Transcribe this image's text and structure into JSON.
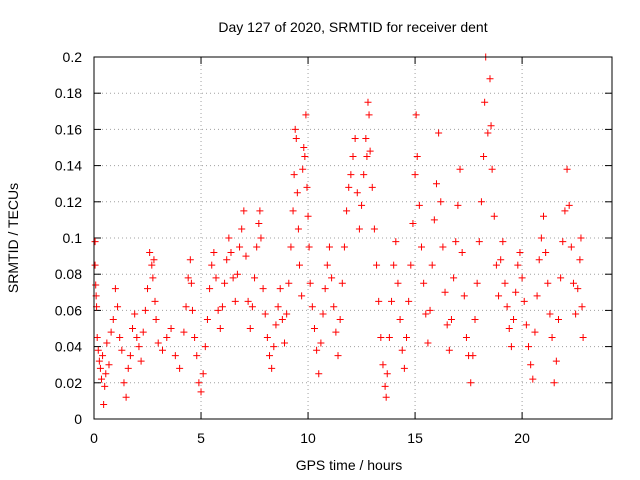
{
  "chart_data": {
    "type": "scatter",
    "title": "Day 127 of 2020, SRMTID for receiver dent",
    "xlabel": "GPS time / hours",
    "ylabel": "SRMTID / TECUs",
    "xlim": [
      0,
      24.2
    ],
    "ylim": [
      0,
      0.2
    ],
    "x_ticks": [
      0,
      5,
      10,
      15,
      20
    ],
    "x_tick_labels": [
      "0",
      "5",
      "10",
      "15",
      "20"
    ],
    "y_ticks": [
      0,
      0.02,
      0.04,
      0.06,
      0.08,
      0.1,
      0.12,
      0.14,
      0.16,
      0.18,
      0.2
    ],
    "y_tick_labels": [
      "0",
      "0.02",
      "0.04",
      "0.06",
      "0.08",
      "0.1",
      "0.12",
      "0.14",
      "0.16",
      "0.18",
      "0.2"
    ],
    "grid": true,
    "marker": "+",
    "marker_color": "#ff0000",
    "series": [
      {
        "name": "SRMTID",
        "points": [
          [
            0.05,
            0.098
          ],
          [
            0.05,
            0.085
          ],
          [
            0.08,
            0.074
          ],
          [
            0.1,
            0.068
          ],
          [
            0.12,
            0.062
          ],
          [
            0.15,
            0.045
          ],
          [
            0.2,
            0.038
          ],
          [
            0.25,
            0.032
          ],
          [
            0.3,
            0.028
          ],
          [
            0.35,
            0.022
          ],
          [
            0.4,
            0.035
          ],
          [
            0.45,
            0.008
          ],
          [
            0.5,
            0.018
          ],
          [
            0.55,
            0.025
          ],
          [
            0.6,
            0.042
          ],
          [
            0.7,
            0.03
          ],
          [
            0.8,
            0.048
          ],
          [
            0.9,
            0.055
          ],
          [
            1.0,
            0.072
          ],
          [
            1.1,
            0.062
          ],
          [
            1.2,
            0.045
          ],
          [
            1.3,
            0.038
          ],
          [
            1.4,
            0.02
          ],
          [
            1.5,
            0.012
          ],
          [
            1.6,
            0.028
          ],
          [
            1.7,
            0.035
          ],
          [
            1.8,
            0.05
          ],
          [
            1.9,
            0.058
          ],
          [
            2.0,
            0.045
          ],
          [
            2.1,
            0.04
          ],
          [
            2.2,
            0.032
          ],
          [
            2.3,
            0.048
          ],
          [
            2.4,
            0.06
          ],
          [
            2.5,
            0.072
          ],
          [
            2.6,
            0.092
          ],
          [
            2.7,
            0.085
          ],
          [
            2.75,
            0.078
          ],
          [
            2.8,
            0.088
          ],
          [
            2.85,
            0.065
          ],
          [
            2.9,
            0.055
          ],
          [
            3.0,
            0.042
          ],
          [
            3.2,
            0.038
          ],
          [
            3.4,
            0.045
          ],
          [
            3.6,
            0.05
          ],
          [
            3.8,
            0.035
          ],
          [
            4.0,
            0.028
          ],
          [
            4.2,
            0.048
          ],
          [
            4.3,
            0.062
          ],
          [
            4.4,
            0.078
          ],
          [
            4.5,
            0.088
          ],
          [
            4.55,
            0.075
          ],
          [
            4.6,
            0.06
          ],
          [
            4.7,
            0.045
          ],
          [
            4.8,
            0.035
          ],
          [
            4.9,
            0.02
          ],
          [
            5.0,
            0.015
          ],
          [
            5.1,
            0.025
          ],
          [
            5.2,
            0.04
          ],
          [
            5.3,
            0.055
          ],
          [
            5.4,
            0.072
          ],
          [
            5.5,
            0.085
          ],
          [
            5.6,
            0.092
          ],
          [
            5.7,
            0.078
          ],
          [
            5.8,
            0.06
          ],
          [
            5.9,
            0.05
          ],
          [
            6.0,
            0.062
          ],
          [
            6.1,
            0.075
          ],
          [
            6.2,
            0.088
          ],
          [
            6.3,
            0.1
          ],
          [
            6.4,
            0.092
          ],
          [
            6.5,
            0.078
          ],
          [
            6.6,
            0.065
          ],
          [
            6.7,
            0.08
          ],
          [
            6.8,
            0.095
          ],
          [
            6.9,
            0.105
          ],
          [
            7.0,
            0.115
          ],
          [
            7.1,
            0.09
          ],
          [
            7.2,
            0.065
          ],
          [
            7.3,
            0.05
          ],
          [
            7.4,
            0.062
          ],
          [
            7.5,
            0.078
          ],
          [
            7.6,
            0.095
          ],
          [
            7.7,
            0.108
          ],
          [
            7.75,
            0.115
          ],
          [
            7.8,
            0.1
          ],
          [
            7.9,
            0.072
          ],
          [
            8.0,
            0.058
          ],
          [
            8.1,
            0.045
          ],
          [
            8.2,
            0.035
          ],
          [
            8.3,
            0.028
          ],
          [
            8.4,
            0.04
          ],
          [
            8.5,
            0.052
          ],
          [
            8.6,
            0.062
          ],
          [
            8.7,
            0.072
          ],
          [
            8.8,
            0.055
          ],
          [
            8.9,
            0.042
          ],
          [
            9.0,
            0.058
          ],
          [
            9.1,
            0.075
          ],
          [
            9.2,
            0.095
          ],
          [
            9.3,
            0.115
          ],
          [
            9.35,
            0.135
          ],
          [
            9.4,
            0.16
          ],
          [
            9.45,
            0.155
          ],
          [
            9.5,
            0.125
          ],
          [
            9.55,
            0.105
          ],
          [
            9.6,
            0.085
          ],
          [
            9.7,
            0.068
          ],
          [
            9.75,
            0.138
          ],
          [
            9.8,
            0.15
          ],
          [
            9.85,
            0.145
          ],
          [
            9.9,
            0.168
          ],
          [
            9.95,
            0.128
          ],
          [
            10.0,
            0.112
          ],
          [
            10.05,
            0.095
          ],
          [
            10.1,
            0.075
          ],
          [
            10.2,
            0.062
          ],
          [
            10.3,
            0.05
          ],
          [
            10.4,
            0.038
          ],
          [
            10.5,
            0.025
          ],
          [
            10.6,
            0.042
          ],
          [
            10.7,
            0.058
          ],
          [
            10.8,
            0.072
          ],
          [
            10.9,
            0.085
          ],
          [
            11.0,
            0.095
          ],
          [
            11.1,
            0.078
          ],
          [
            11.2,
            0.062
          ],
          [
            11.3,
            0.048
          ],
          [
            11.4,
            0.035
          ],
          [
            11.5,
            0.055
          ],
          [
            11.6,
            0.075
          ],
          [
            11.7,
            0.095
          ],
          [
            11.8,
            0.115
          ],
          [
            11.9,
            0.128
          ],
          [
            12.0,
            0.135
          ],
          [
            12.1,
            0.145
          ],
          [
            12.2,
            0.155
          ],
          [
            12.3,
            0.125
          ],
          [
            12.4,
            0.105
          ],
          [
            12.5,
            0.118
          ],
          [
            12.6,
            0.135
          ],
          [
            12.7,
            0.155
          ],
          [
            12.75,
            0.145
          ],
          [
            12.8,
            0.175
          ],
          [
            12.85,
            0.168
          ],
          [
            12.9,
            0.148
          ],
          [
            13.0,
            0.128
          ],
          [
            13.1,
            0.105
          ],
          [
            13.2,
            0.085
          ],
          [
            13.3,
            0.065
          ],
          [
            13.4,
            0.045
          ],
          [
            13.5,
            0.03
          ],
          [
            13.6,
            0.018
          ],
          [
            13.65,
            0.012
          ],
          [
            13.7,
            0.025
          ],
          [
            13.8,
            0.045
          ],
          [
            13.9,
            0.065
          ],
          [
            14.0,
            0.085
          ],
          [
            14.1,
            0.098
          ],
          [
            14.2,
            0.075
          ],
          [
            14.3,
            0.055
          ],
          [
            14.4,
            0.038
          ],
          [
            14.5,
            0.028
          ],
          [
            14.6,
            0.045
          ],
          [
            14.7,
            0.065
          ],
          [
            14.8,
            0.085
          ],
          [
            14.9,
            0.108
          ],
          [
            15.0,
            0.135
          ],
          [
            15.05,
            0.168
          ],
          [
            15.1,
            0.145
          ],
          [
            15.2,
            0.118
          ],
          [
            15.3,
            0.095
          ],
          [
            15.4,
            0.075
          ],
          [
            15.5,
            0.058
          ],
          [
            15.6,
            0.042
          ],
          [
            15.7,
            0.06
          ],
          [
            15.8,
            0.085
          ],
          [
            15.9,
            0.11
          ],
          [
            16.0,
            0.13
          ],
          [
            16.1,
            0.158
          ],
          [
            16.2,
            0.12
          ],
          [
            16.3,
            0.095
          ],
          [
            16.4,
            0.07
          ],
          [
            16.5,
            0.052
          ],
          [
            16.6,
            0.038
          ],
          [
            16.7,
            0.055
          ],
          [
            16.8,
            0.078
          ],
          [
            16.9,
            0.098
          ],
          [
            17.0,
            0.118
          ],
          [
            17.1,
            0.138
          ],
          [
            17.2,
            0.092
          ],
          [
            17.3,
            0.068
          ],
          [
            17.4,
            0.045
          ],
          [
            17.5,
            0.035
          ],
          [
            17.6,
            0.02
          ],
          [
            17.7,
            0.035
          ],
          [
            17.8,
            0.055
          ],
          [
            17.9,
            0.075
          ],
          [
            18.0,
            0.098
          ],
          [
            18.1,
            0.12
          ],
          [
            18.2,
            0.145
          ],
          [
            18.25,
            0.175
          ],
          [
            18.3,
            0.2
          ],
          [
            18.4,
            0.158
          ],
          [
            18.5,
            0.188
          ],
          [
            18.55,
            0.162
          ],
          [
            18.6,
            0.138
          ],
          [
            18.7,
            0.112
          ],
          [
            18.8,
            0.085
          ],
          [
            18.9,
            0.068
          ],
          [
            19.0,
            0.088
          ],
          [
            19.1,
            0.098
          ],
          [
            19.2,
            0.075
          ],
          [
            19.3,
            0.062
          ],
          [
            19.4,
            0.05
          ],
          [
            19.5,
            0.04
          ],
          [
            19.6,
            0.055
          ],
          [
            19.7,
            0.07
          ],
          [
            19.8,
            0.085
          ],
          [
            19.9,
            0.092
          ],
          [
            20.0,
            0.078
          ],
          [
            20.1,
            0.065
          ],
          [
            20.2,
            0.052
          ],
          [
            20.3,
            0.04
          ],
          [
            20.4,
            0.03
          ],
          [
            20.5,
            0.022
          ],
          [
            20.6,
            0.048
          ],
          [
            20.7,
            0.068
          ],
          [
            20.8,
            0.088
          ],
          [
            20.9,
            0.1
          ],
          [
            21.0,
            0.112
          ],
          [
            21.1,
            0.092
          ],
          [
            21.2,
            0.075
          ],
          [
            21.3,
            0.058
          ],
          [
            21.4,
            0.045
          ],
          [
            21.5,
            0.02
          ],
          [
            21.6,
            0.032
          ],
          [
            21.7,
            0.055
          ],
          [
            21.8,
            0.078
          ],
          [
            21.9,
            0.098
          ],
          [
            22.0,
            0.115
          ],
          [
            22.1,
            0.138
          ],
          [
            22.2,
            0.118
          ],
          [
            22.3,
            0.095
          ],
          [
            22.4,
            0.075
          ],
          [
            22.5,
            0.058
          ],
          [
            22.6,
            0.072
          ],
          [
            22.7,
            0.088
          ],
          [
            22.75,
            0.1
          ],
          [
            22.8,
            0.062
          ],
          [
            22.85,
            0.045
          ]
        ]
      }
    ]
  }
}
